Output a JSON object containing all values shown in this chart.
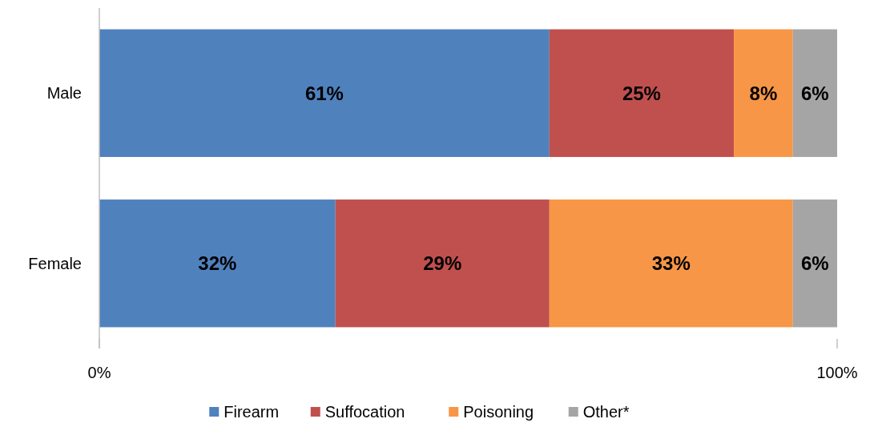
{
  "chart_data": {
    "type": "bar",
    "orientation": "horizontal",
    "stacked": true,
    "categories": [
      "Male",
      "Female"
    ],
    "series": [
      {
        "name": "Firearm",
        "color": "#4f81bd",
        "values": [
          61,
          32
        ],
        "value_labels": [
          "61%",
          "32%"
        ]
      },
      {
        "name": "Suffocation",
        "color": "#c0504d",
        "values": [
          25,
          29
        ],
        "value_labels": [
          "25%",
          "29%"
        ]
      },
      {
        "name": "Poisoning",
        "color": "#f79646",
        "values": [
          8,
          33
        ],
        "value_labels": [
          "8%",
          "33%"
        ]
      },
      {
        "name": "Other*",
        "color": "#a5a5a5",
        "values": [
          6,
          6
        ],
        "value_labels": [
          "6%",
          "6%"
        ]
      }
    ],
    "xlim": [
      0,
      100
    ],
    "xticks": [
      {
        "value": 0,
        "label": "0%"
      },
      {
        "value": 100,
        "label": "100%"
      }
    ],
    "grid": false,
    "legend": "bottom"
  }
}
